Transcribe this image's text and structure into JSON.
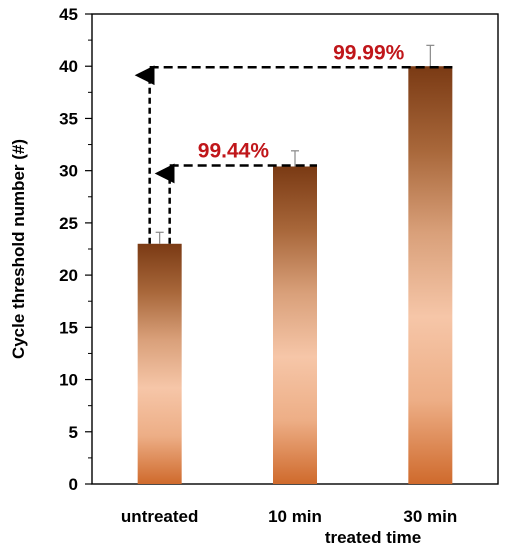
{
  "chart_data": {
    "type": "bar",
    "title": "",
    "xlabel": "treated time",
    "ylabel": "Cycle threshold number (#)",
    "ylim": [
      0,
      45
    ],
    "yticks": [
      0,
      5,
      10,
      15,
      20,
      25,
      30,
      35,
      40,
      45
    ],
    "categories": [
      "untreated",
      "10 min",
      "30 min"
    ],
    "values": [
      23.0,
      30.4,
      40.0
    ],
    "error": [
      1.1,
      1.5,
      2.0
    ],
    "grid": false,
    "bar_gradient": [
      "#7a3a14",
      "#a8673a",
      "#d9a07a",
      "#f6c6a8",
      "#edae86",
      "#cf6a2c"
    ],
    "annotations": [
      {
        "text": "99.44%",
        "from_category": "untreated",
        "to_category": "10 min",
        "y": 30.5,
        "color": "#c0161a"
      },
      {
        "text": "99.99%",
        "from_category": "untreated",
        "to_category": "30 min",
        "y": 39.9,
        "color": "#c0161a"
      }
    ]
  }
}
